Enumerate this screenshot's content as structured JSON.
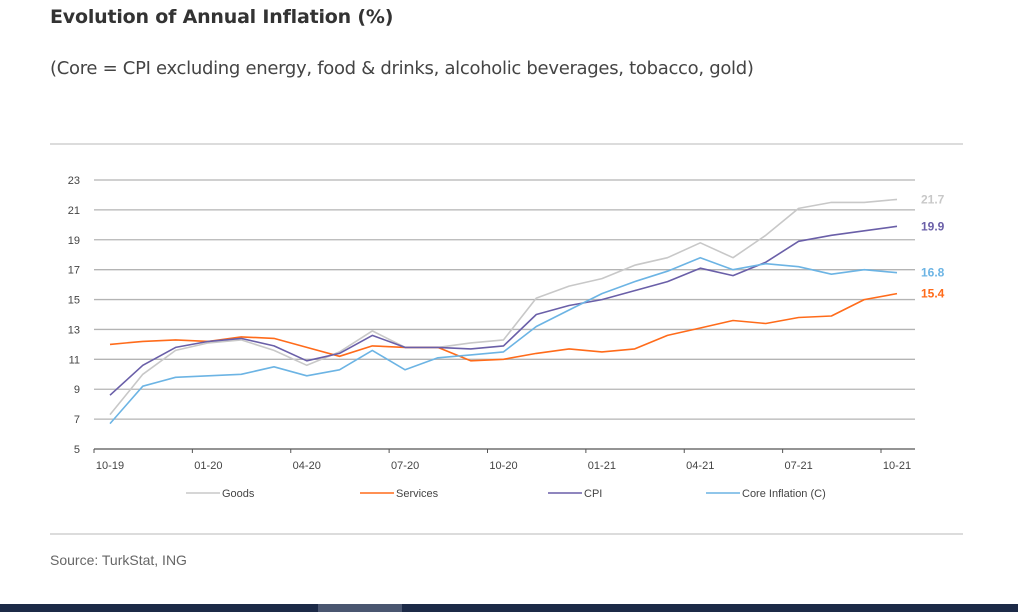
{
  "header": {
    "title": "Evolution of Annual Inflation (%)",
    "subtitle": "(Core = CPI excluding energy, food & drinks, alcoholic beverages, tobacco, gold)"
  },
  "footer": {
    "source": "Source: TurkStat, ING"
  },
  "chart_data": {
    "type": "line",
    "title": "Evolution of Annual Inflation (%)",
    "subtitle": "(Core = CPI excluding energy, food & drinks, alcoholic beverages, tobacco, gold)",
    "xlabel": "",
    "ylabel": "",
    "ylim": [
      5,
      23
    ],
    "yticks": [
      5,
      7,
      9,
      11,
      13,
      15,
      17,
      19,
      21,
      23
    ],
    "grid": true,
    "legend_position": "bottom",
    "x": [
      "10-19",
      "11-19",
      "12-19",
      "01-20",
      "02-20",
      "03-20",
      "04-20",
      "05-20",
      "06-20",
      "07-20",
      "08-20",
      "09-20",
      "10-20",
      "11-20",
      "12-20",
      "01-21",
      "02-21",
      "03-21",
      "04-21",
      "05-21",
      "06-21",
      "07-21",
      "08-21",
      "09-21",
      "10-21"
    ],
    "xtick_labels": [
      "10-19",
      "01-20",
      "04-20",
      "07-20",
      "10-20",
      "01-21",
      "04-21",
      "07-21",
      "10-21"
    ],
    "series": [
      {
        "name": "Goods",
        "color": "#c8c8c8",
        "end_label": "21.7",
        "values": [
          7.3,
          10.0,
          11.6,
          12.1,
          12.3,
          11.6,
          10.6,
          11.5,
          12.9,
          11.8,
          11.8,
          12.1,
          12.3,
          15.1,
          15.9,
          16.4,
          17.3,
          17.8,
          18.8,
          17.8,
          19.3,
          21.1,
          21.5,
          21.5,
          21.7
        ]
      },
      {
        "name": "Services",
        "color": "#ff6b1a",
        "end_label": "15.4",
        "values": [
          12.0,
          12.2,
          12.3,
          12.2,
          12.5,
          12.4,
          11.8,
          11.2,
          11.9,
          11.8,
          11.8,
          10.9,
          11.0,
          11.4,
          11.7,
          11.5,
          11.7,
          12.6,
          13.1,
          13.6,
          13.4,
          13.8,
          13.9,
          15.0,
          15.4
        ]
      },
      {
        "name": "CPI",
        "color": "#6a5fa8",
        "end_label": "19.9",
        "values": [
          8.6,
          10.6,
          11.8,
          12.2,
          12.4,
          11.9,
          10.9,
          11.4,
          12.6,
          11.8,
          11.8,
          11.7,
          11.9,
          14.0,
          14.6,
          15.0,
          15.6,
          16.2,
          17.1,
          16.6,
          17.5,
          18.9,
          19.3,
          19.6,
          19.9
        ]
      },
      {
        "name": "Core Inflation (C)",
        "color": "#6cb4e4",
        "end_label": "16.8",
        "values": [
          6.7,
          9.2,
          9.8,
          9.9,
          10.0,
          10.5,
          9.9,
          10.3,
          11.6,
          10.3,
          11.1,
          11.3,
          11.5,
          13.2,
          14.3,
          15.4,
          16.2,
          16.9,
          17.8,
          17.0,
          17.4,
          17.2,
          16.7,
          17.0,
          16.8
        ]
      }
    ],
    "axis_color": "#555555",
    "grid_color": "#b4b4b4"
  }
}
